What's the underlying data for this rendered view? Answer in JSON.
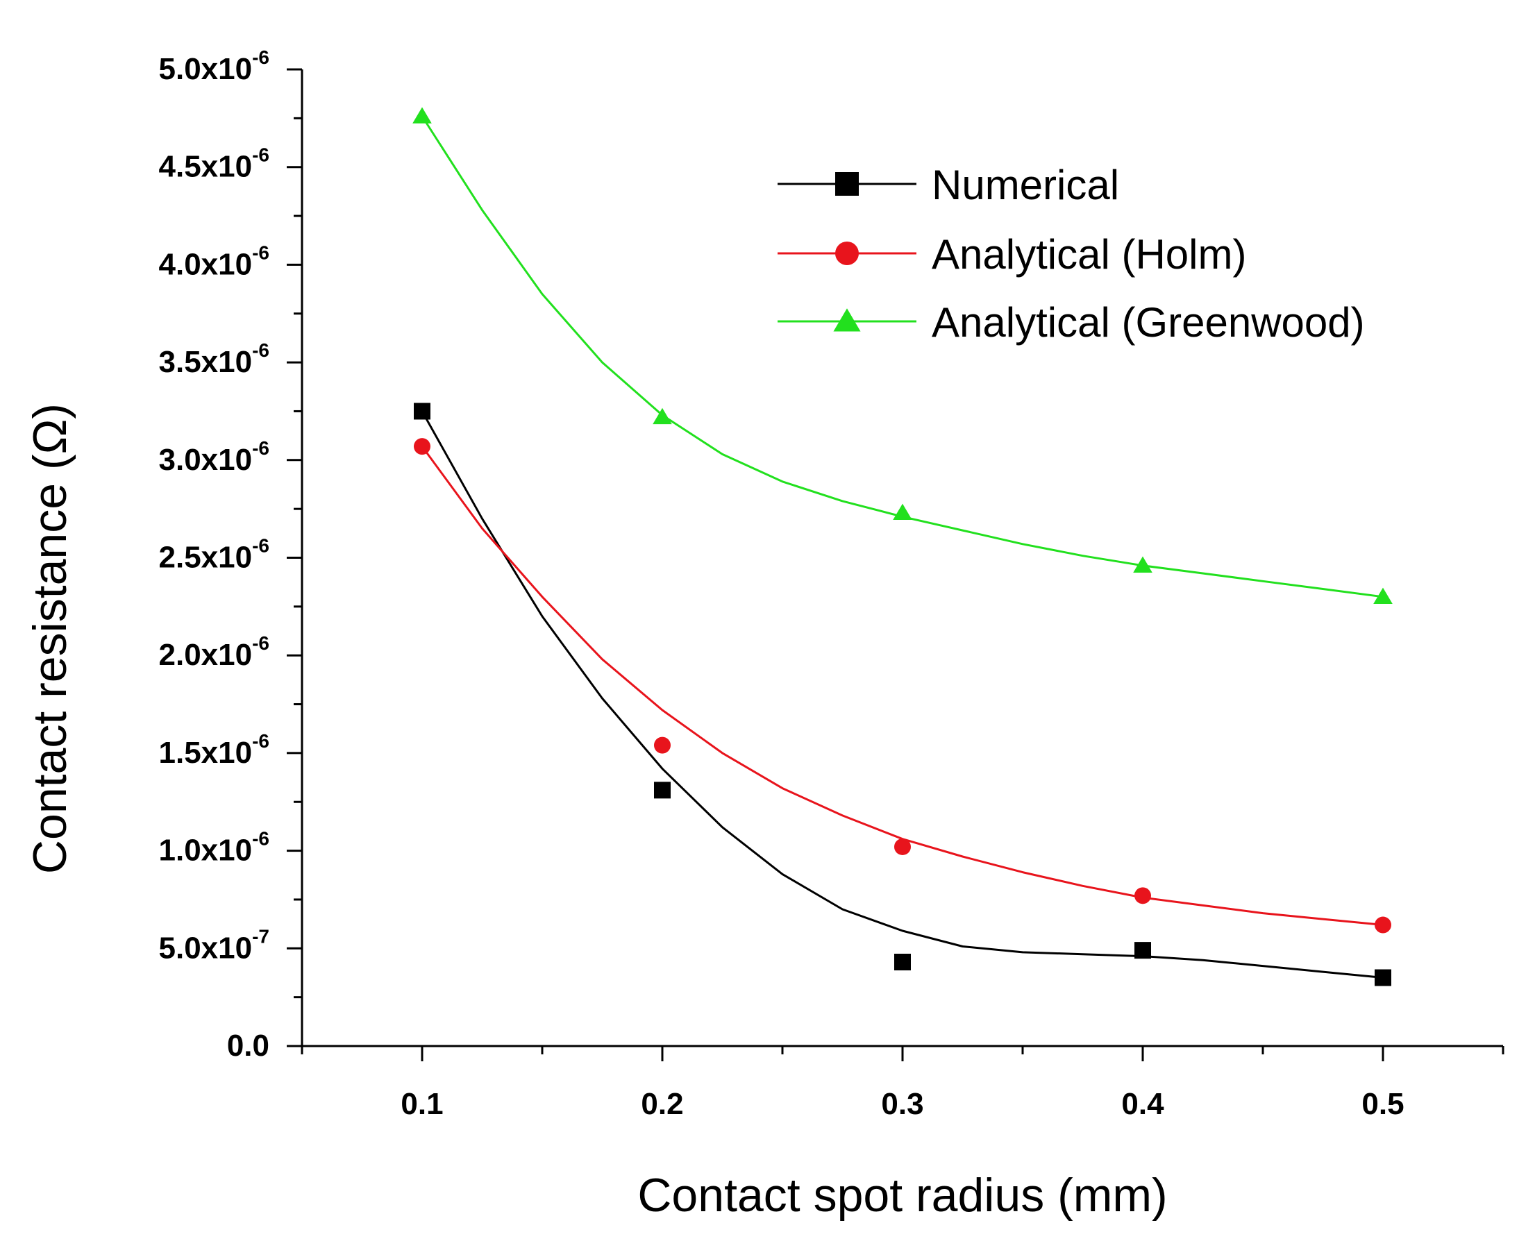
{
  "chart_data": {
    "type": "line",
    "title": "",
    "xlabel": "Contact spot radius (mm)",
    "ylabel": "Contact resistance (Ω)",
    "xlim": [
      0.05,
      0.55
    ],
    "ylim": [
      0,
      5e-06
    ],
    "x_ticks": [
      {
        "value": 0.1,
        "label": "0.1"
      },
      {
        "value": 0.2,
        "label": "0.2"
      },
      {
        "value": 0.3,
        "label": "0.3"
      },
      {
        "value": 0.4,
        "label": "0.4"
      },
      {
        "value": 0.5,
        "label": "0.5"
      }
    ],
    "y_ticks": [
      {
        "value": 0,
        "mantissa": "0.0",
        "exponent": ""
      },
      {
        "value": 5e-07,
        "mantissa": "5.0x10",
        "exponent": "-7"
      },
      {
        "value": 1e-06,
        "mantissa": "1.0x10",
        "exponent": "-6"
      },
      {
        "value": 1.5e-06,
        "mantissa": "1.5x10",
        "exponent": "-6"
      },
      {
        "value": 2e-06,
        "mantissa": "2.0x10",
        "exponent": "-6"
      },
      {
        "value": 2.5e-06,
        "mantissa": "2.5x10",
        "exponent": "-6"
      },
      {
        "value": 3e-06,
        "mantissa": "3.0x10",
        "exponent": "-6"
      },
      {
        "value": 3.5e-06,
        "mantissa": "3.5x10",
        "exponent": "-6"
      },
      {
        "value": 4e-06,
        "mantissa": "4.0x10",
        "exponent": "-6"
      },
      {
        "value": 4.5e-06,
        "mantissa": "4.5x10",
        "exponent": "-6"
      },
      {
        "value": 5e-06,
        "mantissa": "5.0x10",
        "exponent": "-6"
      }
    ],
    "legend_position": "top-right",
    "x": [
      0.1,
      0.2,
      0.3,
      0.4,
      0.5
    ],
    "series": [
      {
        "name": "Numerical",
        "marker": "square",
        "color": "#000000",
        "values": [
          3.25e-06,
          1.31e-06,
          4.3e-07,
          4.9e-07,
          3.5e-07
        ],
        "fit_curve": [
          [
            0.1,
            3.25e-06
          ],
          [
            0.125,
            2.7e-06
          ],
          [
            0.15,
            2.2e-06
          ],
          [
            0.175,
            1.78e-06
          ],
          [
            0.2,
            1.42e-06
          ],
          [
            0.225,
            1.12e-06
          ],
          [
            0.25,
            8.8e-07
          ],
          [
            0.275,
            7e-07
          ],
          [
            0.3,
            5.9e-07
          ],
          [
            0.325,
            5.1e-07
          ],
          [
            0.35,
            4.8e-07
          ],
          [
            0.375,
            4.7e-07
          ],
          [
            0.4,
            4.6e-07
          ],
          [
            0.425,
            4.4e-07
          ],
          [
            0.45,
            4.1e-07
          ],
          [
            0.475,
            3.8e-07
          ],
          [
            0.5,
            3.5e-07
          ]
        ]
      },
      {
        "name": "Analytical (Holm)",
        "marker": "circle",
        "color": "#e8141c",
        "values": [
          3.07e-06,
          1.54e-06,
          1.02e-06,
          7.7e-07,
          6.2e-07
        ],
        "fit_curve": [
          [
            0.1,
            3.07e-06
          ],
          [
            0.125,
            2.65e-06
          ],
          [
            0.15,
            2.3e-06
          ],
          [
            0.175,
            1.98e-06
          ],
          [
            0.2,
            1.72e-06
          ],
          [
            0.225,
            1.5e-06
          ],
          [
            0.25,
            1.32e-06
          ],
          [
            0.275,
            1.18e-06
          ],
          [
            0.3,
            1.06e-06
          ],
          [
            0.325,
            9.7e-07
          ],
          [
            0.35,
            8.9e-07
          ],
          [
            0.375,
            8.2e-07
          ],
          [
            0.4,
            7.6e-07
          ],
          [
            0.425,
            7.2e-07
          ],
          [
            0.45,
            6.8e-07
          ],
          [
            0.475,
            6.5e-07
          ],
          [
            0.5,
            6.2e-07
          ]
        ]
      },
      {
        "name": "Analytical (Greenwood)",
        "marker": "triangle",
        "color": "#22e01e",
        "values": [
          4.76e-06,
          3.22e-06,
          2.73e-06,
          2.46e-06,
          2.3e-06
        ],
        "fit_curve": [
          [
            0.1,
            4.76e-06
          ],
          [
            0.125,
            4.28e-06
          ],
          [
            0.15,
            3.85e-06
          ],
          [
            0.175,
            3.5e-06
          ],
          [
            0.2,
            3.23e-06
          ],
          [
            0.225,
            3.03e-06
          ],
          [
            0.25,
            2.89e-06
          ],
          [
            0.275,
            2.79e-06
          ],
          [
            0.3,
            2.71e-06
          ],
          [
            0.325,
            2.64e-06
          ],
          [
            0.35,
            2.57e-06
          ],
          [
            0.375,
            2.51e-06
          ],
          [
            0.4,
            2.46e-06
          ],
          [
            0.425,
            2.42e-06
          ],
          [
            0.45,
            2.38e-06
          ],
          [
            0.475,
            2.34e-06
          ],
          [
            0.5,
            2.3e-06
          ]
        ]
      }
    ]
  }
}
